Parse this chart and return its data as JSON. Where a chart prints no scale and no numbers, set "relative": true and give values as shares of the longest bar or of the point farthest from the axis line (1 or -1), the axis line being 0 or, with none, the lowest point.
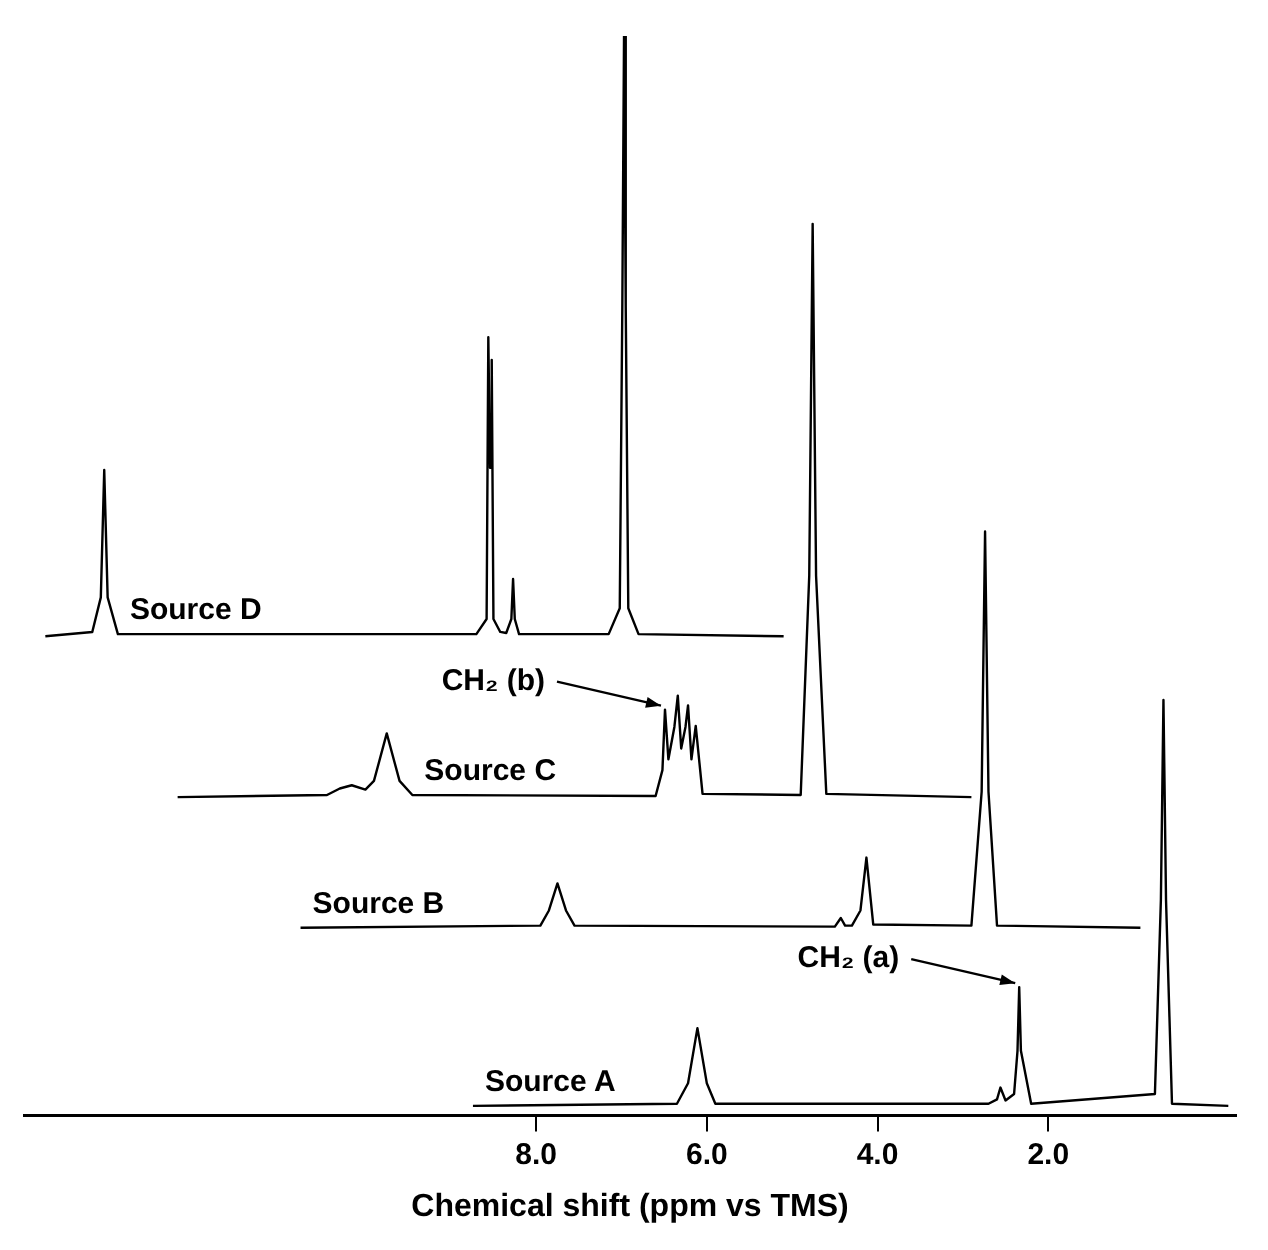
{
  "chart_data": {
    "type": "line",
    "relative": true,
    "xlabel": "Chemical shift (ppm vs TMS)",
    "xlim": [
      14,
      -0.2
    ],
    "xticks": [
      {
        "value": 8,
        "label": "8.0"
      },
      {
        "value": 6,
        "label": "6.0"
      },
      {
        "value": 4,
        "label": "4.0"
      },
      {
        "value": 2,
        "label": "2.0"
      }
    ],
    "tick_labels": "x",
    "grid": false,
    "legend": false,
    "marker": "none",
    "line_style": "solid",
    "series": [
      {
        "name": "Source D",
        "color": "#000000",
        "x": [
          13.75,
          13.2,
          13.1,
          13.06,
          13.02,
          12.9,
          8.7,
          8.58,
          8.56,
          8.54,
          8.52,
          8.5,
          8.42,
          8.35,
          8.29,
          8.27,
          8.25,
          8.2,
          7.15,
          7.02,
          6.99,
          6.97,
          6.95,
          6.92,
          6.8,
          5.1
        ],
        "values": [
          0.444,
          0.448,
          0.48,
          0.598,
          0.48,
          0.446,
          0.446,
          0.46,
          0.721,
          0.6,
          0.7,
          0.46,
          0.448,
          0.447,
          0.46,
          0.497,
          0.46,
          0.446,
          0.446,
          0.47,
          0.75,
          1.0,
          0.75,
          0.47,
          0.446,
          0.444
        ]
      },
      {
        "name": "Source C",
        "color": "#000000",
        "x": [
          12.2,
          10.45,
          10.3,
          10.16,
          10.0,
          9.9,
          9.75,
          9.6,
          9.45,
          6.6,
          6.52,
          6.49,
          6.45,
          6.38,
          6.34,
          6.3,
          6.25,
          6.22,
          6.18,
          6.13,
          6.05,
          4.9,
          4.8,
          4.76,
          4.72,
          4.6,
          2.9
        ],
        "values": [
          0.295,
          0.297,
          0.303,
          0.306,
          0.302,
          0.31,
          0.354,
          0.31,
          0.297,
          0.296,
          0.32,
          0.376,
          0.33,
          0.36,
          0.389,
          0.34,
          0.36,
          0.38,
          0.33,
          0.361,
          0.298,
          0.297,
          0.5,
          0.826,
          0.5,
          0.298,
          0.295
        ]
      },
      {
        "name": "Source B",
        "color": "#000000",
        "x": [
          10.76,
          7.95,
          7.85,
          7.75,
          7.65,
          7.55,
          4.5,
          4.43,
          4.38,
          4.3,
          4.2,
          4.13,
          4.05,
          2.9,
          2.78,
          2.74,
          2.7,
          2.6,
          0.92
        ],
        "values": [
          0.174,
          0.176,
          0.19,
          0.215,
          0.19,
          0.176,
          0.175,
          0.183,
          0.176,
          0.176,
          0.19,
          0.239,
          0.177,
          0.176,
          0.3,
          0.541,
          0.3,
          0.176,
          0.174
        ]
      },
      {
        "name": "Source A",
        "color": "#000000",
        "x": [
          8.74,
          6.35,
          6.22,
          6.11,
          6.0,
          5.9,
          2.7,
          2.6,
          2.56,
          2.5,
          2.4,
          2.36,
          2.34,
          2.32,
          2.2,
          0.75,
          0.68,
          0.65,
          0.62,
          0.55,
          -0.11
        ],
        "values": [
          0.009,
          0.011,
          0.03,
          0.081,
          0.03,
          0.011,
          0.011,
          0.015,
          0.026,
          0.014,
          0.02,
          0.06,
          0.119,
          0.06,
          0.011,
          0.02,
          0.2,
          0.385,
          0.2,
          0.011,
          0.009
        ]
      }
    ],
    "annotations": [
      {
        "text": "CH₂ (b)",
        "x": 6.49,
        "y": 0.376
      },
      {
        "text": "CH₂ (a)",
        "x": 2.34,
        "y": 0.119
      }
    ]
  }
}
